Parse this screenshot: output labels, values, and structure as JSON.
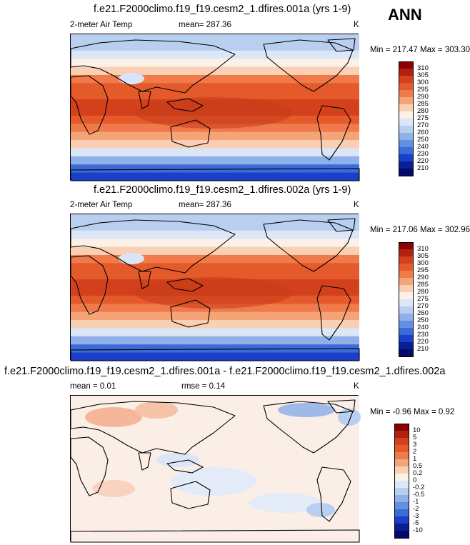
{
  "season": "ANN",
  "panels": [
    {
      "title": "f.e21.F2000climo.f19_f19.cesm2_1.dfires.001a (yrs 1-9)",
      "left_label": "2-meter Air Temp",
      "center_label": "mean= 287.36",
      "units": "K",
      "minmax": "Min = 217.47 Max = 303.30",
      "colorbar": [
        "310",
        "305",
        "300",
        "295",
        "290",
        "285",
        "280",
        "275",
        "270",
        "260",
        "250",
        "240",
        "230",
        "220",
        "210"
      ]
    },
    {
      "title": "f.e21.F2000climo.f19_f19.cesm2_1.dfires.002a (yrs 1-9)",
      "left_label": "2-meter Air Temp",
      "center_label": "mean= 287.36",
      "units": "K",
      "minmax": "Min = 217.06 Max = 302.96",
      "colorbar": [
        "310",
        "305",
        "300",
        "295",
        "290",
        "285",
        "280",
        "275",
        "270",
        "260",
        "250",
        "240",
        "230",
        "220",
        "210"
      ]
    },
    {
      "title": "f.e21.F2000climo.f19_f19.cesm2_1.dfires.001a - f.e21.F2000climo.f19_f19.cesm2_1.dfires.002a",
      "left_label": "mean =   0.01",
      "center_label": "rmse =   0.14",
      "units": "K",
      "minmax": "Min =  -0.96 Max =   0.92",
      "colorbar": [
        "10",
        "5",
        "3",
        "2",
        "1",
        "0.5",
        "0.2",
        "0",
        "-0.2",
        "-0.5",
        "-1",
        "-2",
        "-3",
        "-5",
        "-10"
      ]
    }
  ],
  "colors": {
    "colorbar_bands": [
      "#8b0000",
      "#b22010",
      "#d2401c",
      "#e45a2a",
      "#f07a4a",
      "#f5a478",
      "#fad0b4",
      "#fdf0e6",
      "#dbe6f6",
      "#b9cff0",
      "#8fb0e8",
      "#6290e0",
      "#3c6ad8",
      "#1a3fc8",
      "#0a1f96",
      "#030a6a"
    ],
    "land_outline": "#000000"
  },
  "chart_data": [
    {
      "type": "heatmap",
      "title": "f.e21.F2000climo.f19_f19.cesm2_1.dfires.001a (yrs 1-9)",
      "variable": "2-meter Air Temp",
      "units": "K",
      "mean": 287.36,
      "min": 217.47,
      "max": 303.3,
      "contour_levels": [
        210,
        220,
        230,
        240,
        250,
        260,
        270,
        275,
        280,
        285,
        290,
        295,
        300,
        305,
        310
      ],
      "zonal_profile_from_north": [
        262,
        265,
        270,
        276,
        282,
        290,
        296,
        299,
        300,
        300,
        298,
        294,
        288,
        280,
        270,
        255,
        235,
        220
      ]
    },
    {
      "type": "heatmap",
      "title": "f.e21.F2000climo.f19_f19.cesm2_1.dfires.002a (yrs 1-9)",
      "variable": "2-meter Air Temp",
      "units": "K",
      "mean": 287.36,
      "min": 217.06,
      "max": 302.96,
      "contour_levels": [
        210,
        220,
        230,
        240,
        250,
        260,
        270,
        275,
        280,
        285,
        290,
        295,
        300,
        305,
        310
      ],
      "zonal_profile_from_north": [
        262,
        265,
        270,
        276,
        282,
        290,
        296,
        299,
        300,
        300,
        298,
        294,
        288,
        280,
        270,
        255,
        235,
        220
      ]
    },
    {
      "type": "heatmap",
      "title": "f.e21.F2000climo.f19_f19.cesm2_1.dfires.001a - f.e21.F2000climo.f19_f19.cesm2_1.dfires.002a",
      "units": "K",
      "mean": 0.01,
      "rmse": 0.14,
      "min": -0.96,
      "max": 0.92,
      "contour_levels": [
        -10,
        -5,
        -3,
        -2,
        -1,
        -0.5,
        -0.2,
        0,
        0.2,
        0.5,
        1,
        2,
        3,
        5,
        10
      ]
    }
  ]
}
